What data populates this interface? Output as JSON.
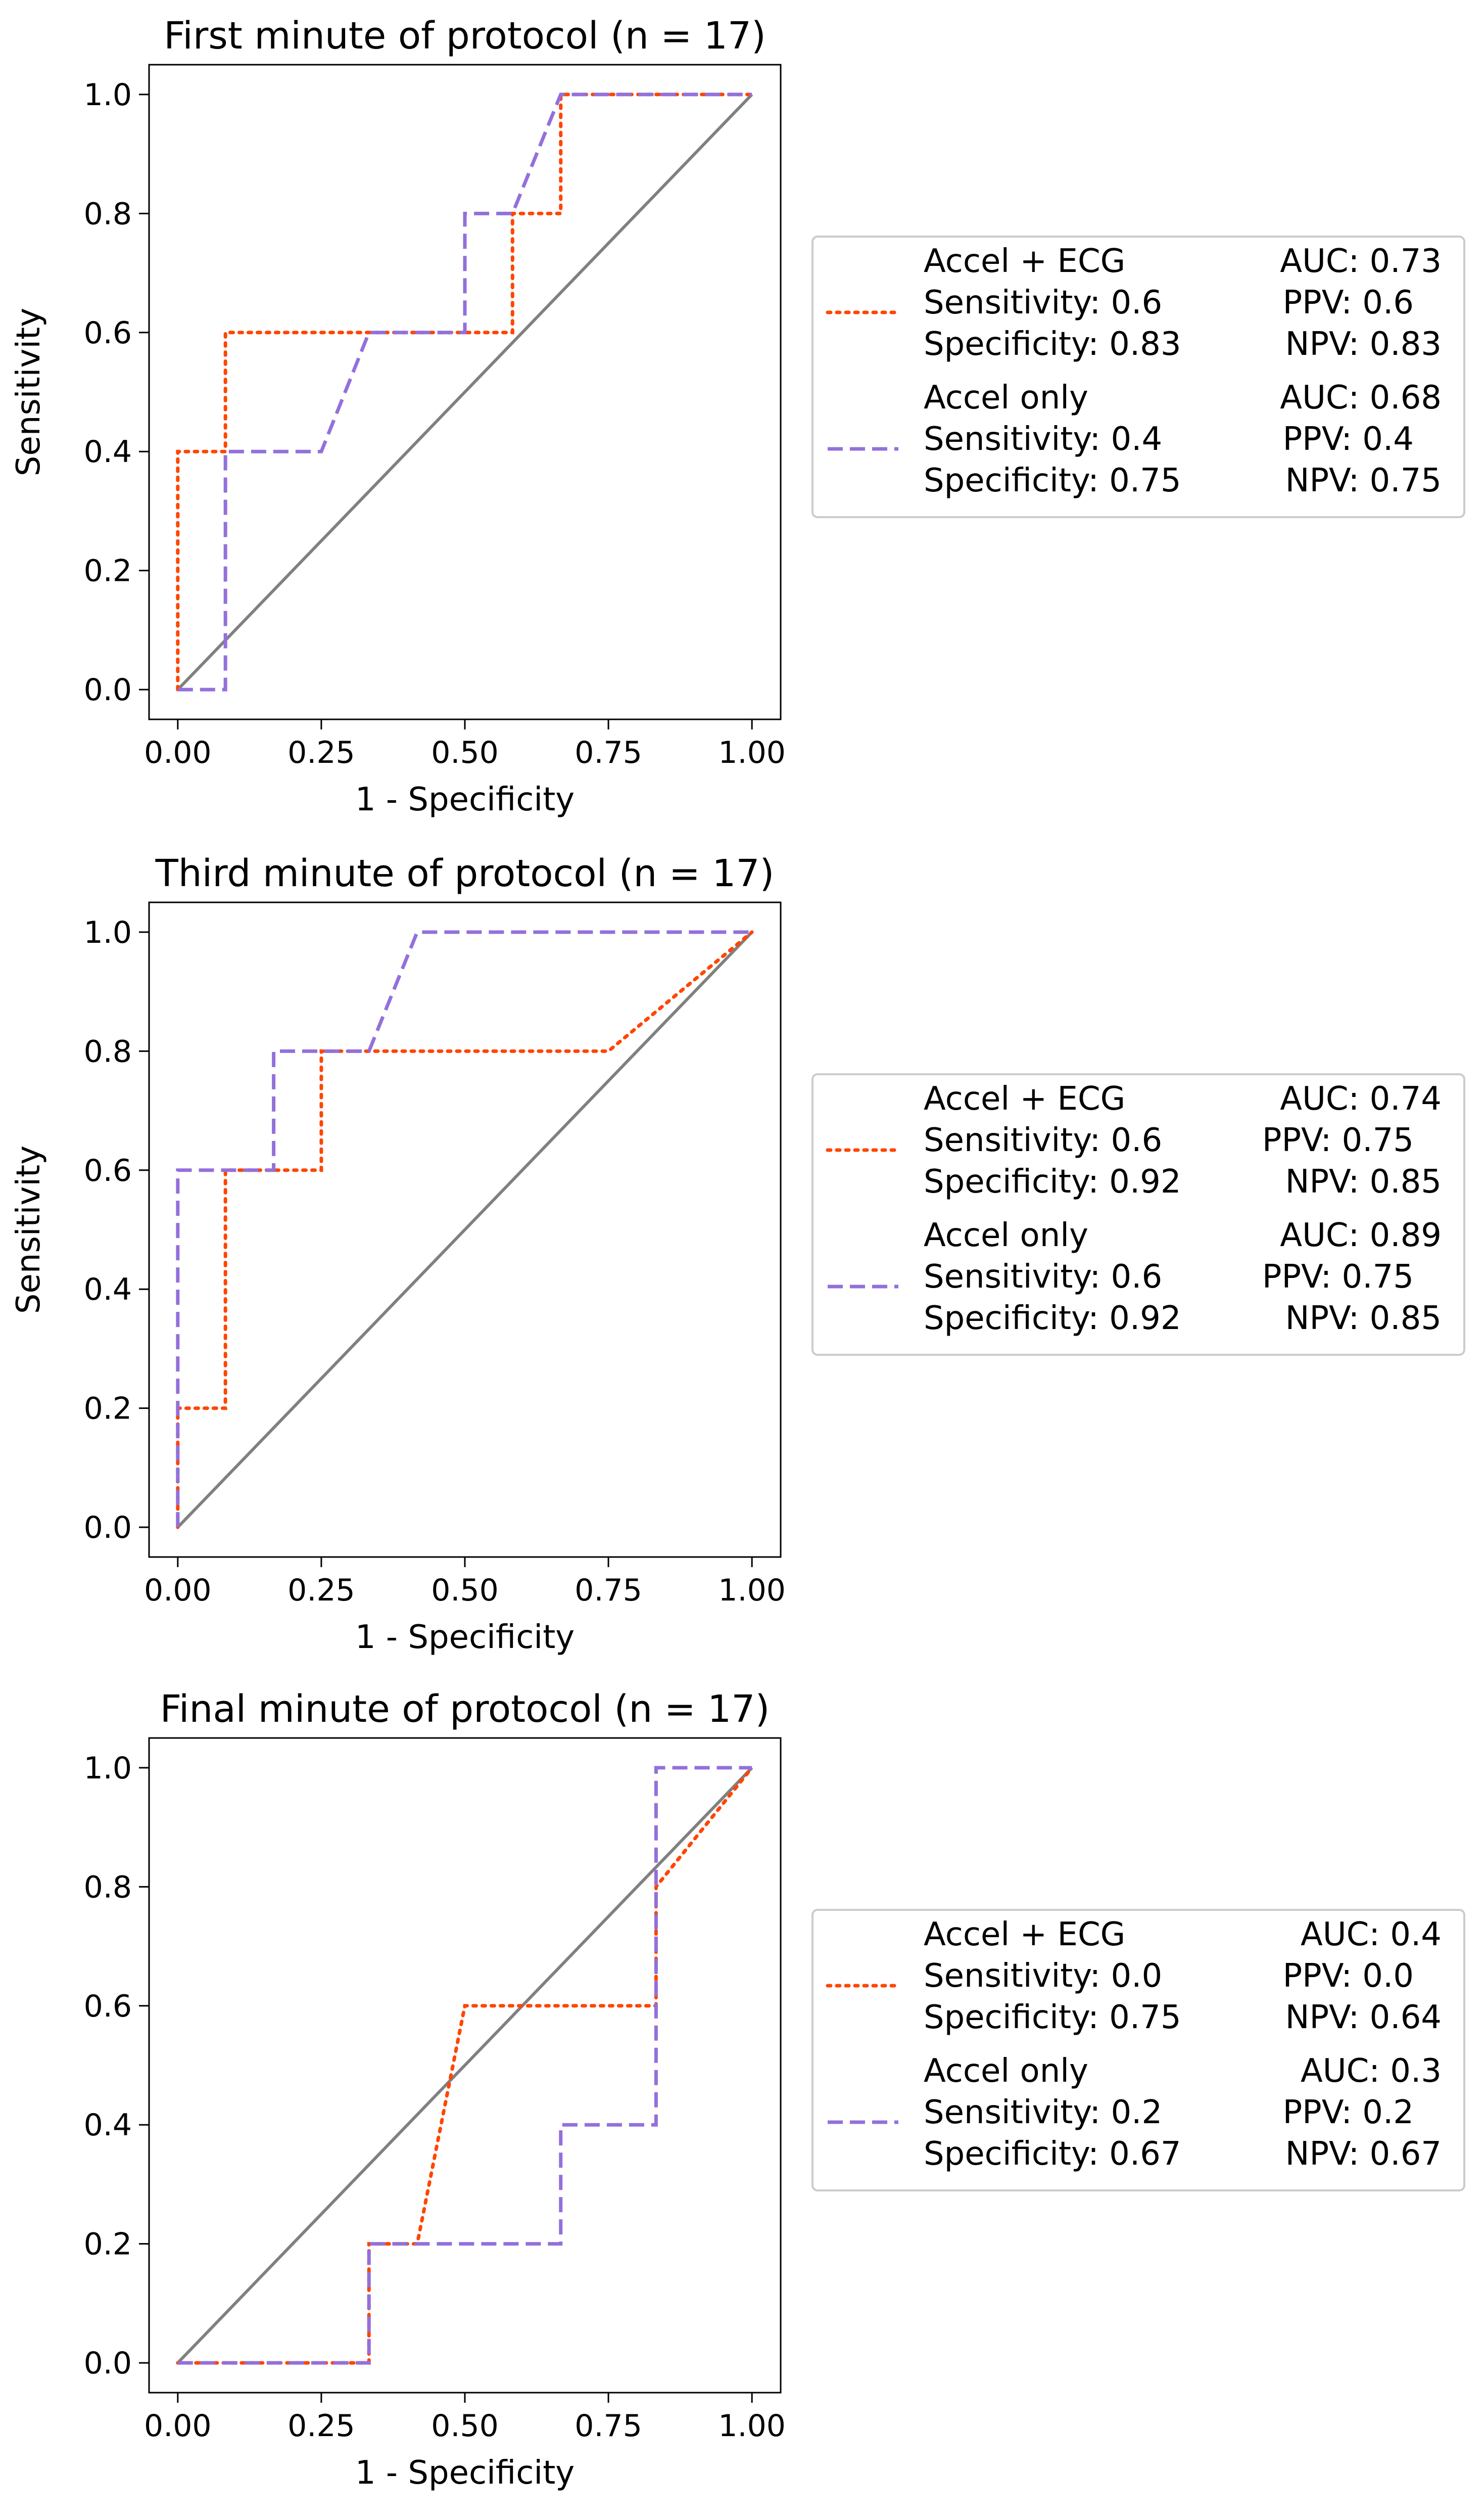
{
  "colors": {
    "accel_ecg": "#ff4500",
    "accel_only": "#9370db",
    "diagonal": "#808080",
    "axes": "#000000",
    "legend_border": "#cccccc"
  },
  "chart_data": [
    {
      "type": "line",
      "title": "First minute of protocol (n = 17)",
      "xlabel": "1 - Specificity",
      "ylabel": "Sensitivity",
      "xlim": [
        0,
        1
      ],
      "ylim": [
        0,
        1
      ],
      "xticks": [
        "0.00",
        "0.25",
        "0.50",
        "0.75",
        "1.00"
      ],
      "yticks": [
        "0.0",
        "0.2",
        "0.4",
        "0.6",
        "0.8",
        "1.0"
      ],
      "diagonal": [
        [
          0,
          0
        ],
        [
          1,
          1
        ]
      ],
      "series": [
        {
          "name": "Accel + ECG",
          "style": "dotted",
          "x": [
            0,
            0,
            0.083,
            0.083,
            0.583,
            0.583,
            0.667,
            0.667,
            1.0
          ],
          "y": [
            0,
            0.4,
            0.4,
            0.6,
            0.6,
            0.8,
            0.8,
            1.0,
            1.0
          ],
          "legend": {
            "name": "Accel + ECG",
            "auc": "AUC: 0.73",
            "sensitivity": "Sensitivity: 0.6",
            "ppv": "PPV: 0.6",
            "specificity": "Specificity: 0.83",
            "npv": "NPV: 0.83"
          }
        },
        {
          "name": "Accel only",
          "style": "dashed",
          "x": [
            0,
            0.083,
            0.083,
            0.25,
            0.333,
            0.5,
            0.5,
            0.583,
            0.667,
            1.0
          ],
          "y": [
            0,
            0,
            0.4,
            0.4,
            0.6,
            0.6,
            0.8,
            0.8,
            1.0,
            1.0
          ],
          "legend": {
            "name": "Accel only",
            "auc": "AUC: 0.68",
            "sensitivity": "Sensitivity: 0.4",
            "ppv": "PPV: 0.4",
            "specificity": "Specificity: 0.75",
            "npv": "NPV: 0.75"
          }
        }
      ]
    },
    {
      "type": "line",
      "title": "Third minute of protocol (n = 17)",
      "xlabel": "1 - Specificity",
      "ylabel": "Sensitivity",
      "xlim": [
        0,
        1
      ],
      "ylim": [
        0,
        1
      ],
      "xticks": [
        "0.00",
        "0.25",
        "0.50",
        "0.75",
        "1.00"
      ],
      "yticks": [
        "0.0",
        "0.2",
        "0.4",
        "0.6",
        "0.8",
        "1.0"
      ],
      "diagonal": [
        [
          0,
          0
        ],
        [
          1,
          1
        ]
      ],
      "series": [
        {
          "name": "Accel + ECG",
          "style": "dotted",
          "x": [
            0,
            0,
            0.083,
            0.083,
            0.25,
            0.25,
            0.75,
            1.0
          ],
          "y": [
            0,
            0.2,
            0.2,
            0.6,
            0.6,
            0.8,
            0.8,
            1.0
          ],
          "legend": {
            "name": "Accel + ECG",
            "auc": "AUC: 0.74",
            "sensitivity": "Sensitivity: 0.6",
            "ppv": "PPV: 0.75",
            "specificity": "Specificity: 0.92",
            "npv": "NPV: 0.85"
          }
        },
        {
          "name": "Accel only",
          "style": "dashed",
          "x": [
            0,
            0,
            0.167,
            0.167,
            0.333,
            0.417,
            1.0
          ],
          "y": [
            0,
            0.6,
            0.6,
            0.8,
            0.8,
            1.0,
            1.0
          ],
          "legend": {
            "name": "Accel only",
            "auc": "AUC: 0.89",
            "sensitivity": "Sensitivity: 0.6",
            "ppv": "PPV: 0.75",
            "specificity": "Specificity: 0.92",
            "npv": "NPV: 0.85"
          }
        }
      ]
    },
    {
      "type": "line",
      "title": "Final minute of protocol (n = 17)",
      "xlabel": "1 - Specificity",
      "ylabel": "",
      "xlim": [
        0,
        1
      ],
      "ylim": [
        0,
        1
      ],
      "xticks": [
        "0.00",
        "0.25",
        "0.50",
        "0.75",
        "1.00"
      ],
      "yticks": [
        "0.0",
        "0.2",
        "0.4",
        "0.6",
        "0.8",
        "1.0"
      ],
      "diagonal": [
        [
          0,
          0
        ],
        [
          1,
          1
        ]
      ],
      "series": [
        {
          "name": "Accel + ECG",
          "style": "dotted",
          "x": [
            0,
            0.333,
            0.333,
            0.417,
            0.5,
            0.833,
            0.833,
            1.0
          ],
          "y": [
            0,
            0,
            0.2,
            0.2,
            0.6,
            0.6,
            0.8,
            1.0
          ],
          "legend": {
            "name": "Accel + ECG",
            "auc": "AUC: 0.4",
            "sensitivity": "Sensitivity: 0.0",
            "ppv": "PPV: 0.0",
            "specificity": "Specificity: 0.75",
            "npv": "NPV: 0.64"
          }
        },
        {
          "name": "Accel only",
          "style": "dashed",
          "x": [
            0,
            0.333,
            0.333,
            0.667,
            0.667,
            0.833,
            0.833,
            1.0
          ],
          "y": [
            0,
            0,
            0.2,
            0.2,
            0.4,
            0.4,
            1.0,
            1.0
          ],
          "legend": {
            "name": "Accel only",
            "auc": "AUC: 0.3",
            "sensitivity": "Sensitivity: 0.2",
            "ppv": "PPV: 0.2",
            "specificity": "Specificity: 0.67",
            "npv": "NPV: 0.67"
          }
        }
      ]
    }
  ]
}
